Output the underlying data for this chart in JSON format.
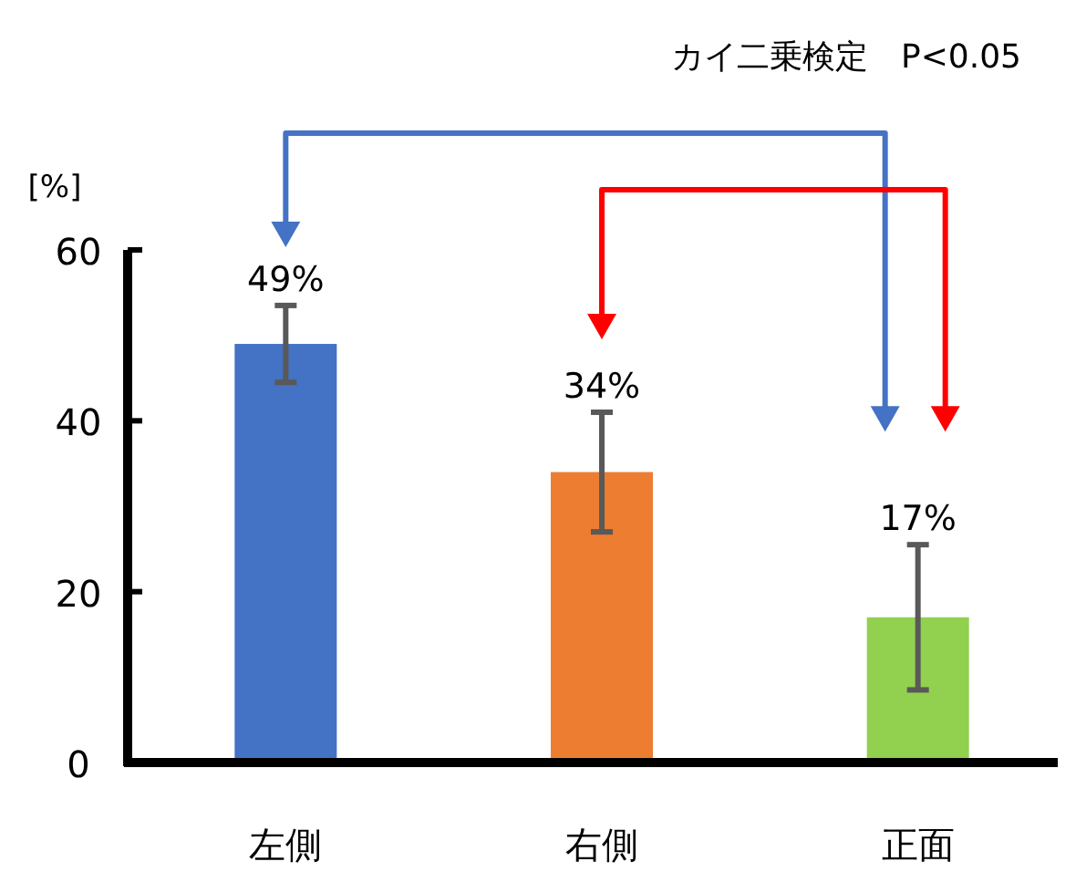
{
  "chart_data": {
    "type": "bar",
    "categories": [
      "左側",
      "右側",
      "正面"
    ],
    "values": [
      49,
      34,
      17
    ],
    "colors": [
      "#4472c4",
      "#ed7d31",
      "#92d050"
    ],
    "errors": [
      4.5,
      7,
      8.5
    ],
    "value_labels": [
      "49%",
      "34%",
      "17%"
    ],
    "ylabel": "[%]",
    "ylim": [
      0,
      60
    ],
    "yticks": [
      0,
      20,
      40,
      60
    ],
    "annotations": [
      "カイ二乗検定　P<0.05"
    ]
  }
}
